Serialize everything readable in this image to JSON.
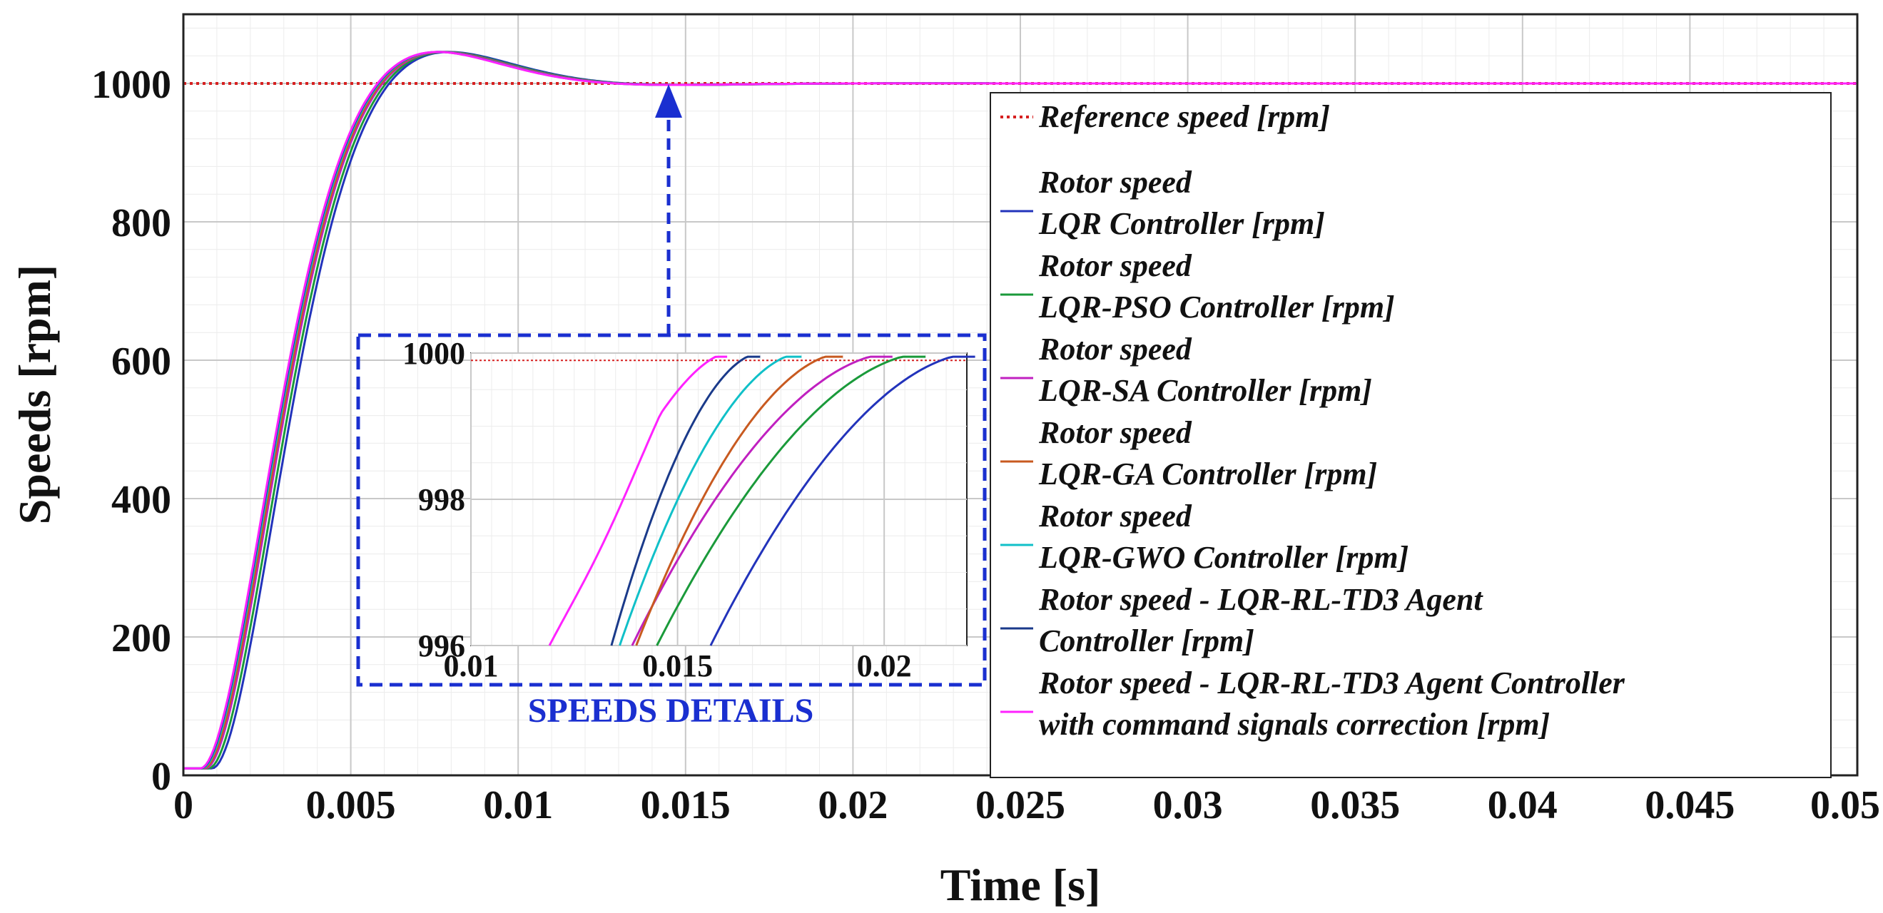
{
  "chart_data": {
    "type": "line",
    "xlabel": "Time [s]",
    "ylabel": "Speeds [rpm]",
    "xlim": [
      0,
      0.05
    ],
    "ylim": [
      0,
      1100
    ],
    "grid": true,
    "x_ticks": [
      0,
      0.005,
      0.01,
      0.015,
      0.02,
      0.025,
      0.03,
      0.035,
      0.04,
      0.045,
      0.05
    ],
    "x_tick_labels": [
      "0",
      "0.005",
      "0.01",
      "0.015",
      "0.02",
      "0.025",
      "0.03",
      "0.035",
      "0.04",
      "0.045",
      "0.05"
    ],
    "y_ticks": [
      0,
      200,
      400,
      600,
      800,
      1000
    ],
    "y_tick_labels": [
      "0",
      "200",
      "400",
      "600",
      "800",
      "1000"
    ],
    "legend_position": "right",
    "series": [
      {
        "name": "Reference speed [rpm]",
        "label_lines": [
          "Reference speed [rpm]"
        ],
        "color": "#d62020",
        "style": "dotted",
        "t_shift": 0,
        "t99": 0
      },
      {
        "name": "Rotor speed LQR Controller [rpm]",
        "label_lines": [
          "Rotor speed",
          "LQR Controller [rpm]"
        ],
        "color": "#2233bb",
        "style": "solid",
        "t_shift": 0.00035,
        "t99": 0.0222
      },
      {
        "name": "Rotor speed LQR-PSO Controller [rpm]",
        "label_lines": [
          "Rotor speed",
          "LQR-PSO Controller [rpm]"
        ],
        "color": "#1a9a3a",
        "style": "solid",
        "t_shift": 0.00025,
        "t99": 0.021
      },
      {
        "name": "Rotor speed LQR-SA Controller [rpm]",
        "label_lines": [
          "Rotor speed",
          "LQR-SA Controller [rpm]"
        ],
        "color": "#c020c0",
        "style": "solid",
        "t_shift": 0.00015,
        "t99": 0.0202
      },
      {
        "name": "Rotor speed LQR-GA Controller [rpm]",
        "label_lines": [
          "Rotor speed",
          "LQR-GA Controller [rpm]"
        ],
        "color": "#c85a20",
        "style": "solid",
        "t_shift": 0.0001,
        "t99": 0.019
      },
      {
        "name": "Rotor speed LQR-GWO Controller [rpm]",
        "label_lines": [
          "Rotor speed",
          "LQR-GWO Controller [rpm]"
        ],
        "color": "#10c0c8",
        "style": "solid",
        "t_shift": 5e-05,
        "t99": 0.018
      },
      {
        "name": "Rotor speed - LQR-RL-TD3 Agent Controller [rpm]",
        "label_lines": [
          "Rotor speed - LQR-RL-TD3 Agent",
          " Controller [rpm]"
        ],
        "color": "#1a3a8a",
        "style": "solid",
        "t_shift": 2e-05,
        "t99": 0.017
      },
      {
        "name": "Rotor speed - LQR-RL-TD3 Agent Controller with command signals correction [rpm]",
        "label_lines": [
          "Rotor speed - LQR-RL-TD3 Agent Controller",
          "with command signals correction [rpm]"
        ],
        "color": "#ff22ff",
        "style": "solid",
        "t_shift": 0,
        "t99": 0.0162
      }
    ],
    "inset": {
      "title": "SPEEDS DETAILS",
      "xlim": [
        0.01,
        0.022
      ],
      "ylim": [
        996,
        1000
      ],
      "x_ticks": [
        0.01,
        0.015,
        0.02
      ],
      "x_tick_labels": [
        "0.01",
        "0.015",
        "0.02"
      ],
      "y_ticks": [
        996,
        998,
        1000
      ],
      "y_tick_labels": [
        "996",
        "998",
        "1000"
      ],
      "reference_value": 999.9,
      "series_996_crossing": [
        0.0158,
        0.0145,
        0.0139,
        0.014,
        0.0136,
        0.0134,
        0.0119
      ]
    }
  },
  "colors": {
    "axis": "#222222",
    "grid_major": "#c8c8c8",
    "grid_minor": "#ececec",
    "inset_frame": "#1a2fd0",
    "arrow": "#1a2fd0",
    "details_text": "#1a2fd0"
  }
}
